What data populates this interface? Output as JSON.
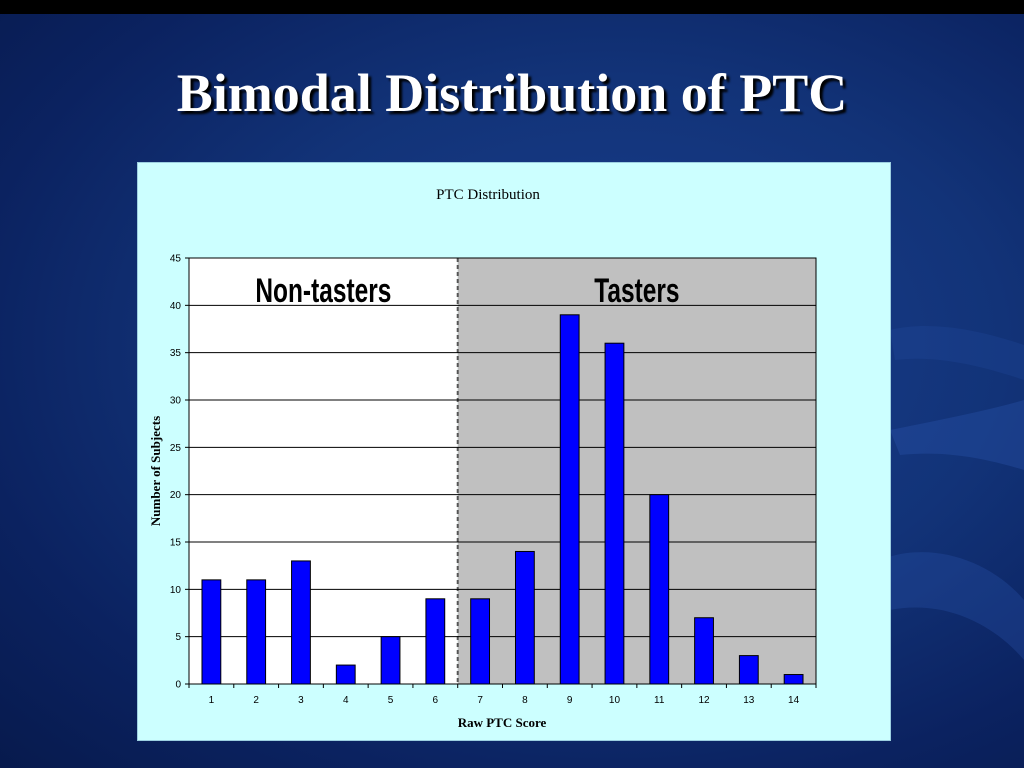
{
  "slide": {
    "title": "Bimodal Distribution of PTC"
  },
  "chart_data": {
    "type": "bar",
    "title": "PTC Distribution",
    "xlabel": "Raw PTC Score",
    "ylabel": "Number of Subjects",
    "categories": [
      "1",
      "2",
      "3",
      "4",
      "5",
      "6",
      "7",
      "8",
      "9",
      "10",
      "11",
      "12",
      "13",
      "14"
    ],
    "values": [
      11,
      11,
      13,
      2,
      5,
      9,
      9,
      14,
      39,
      36,
      20,
      7,
      3,
      1
    ],
    "ylim": [
      0,
      45
    ],
    "yticks": [
      0,
      5,
      10,
      15,
      20,
      25,
      30,
      35,
      40,
      45
    ],
    "grid": true,
    "bar_color": "#0000ff",
    "regions": [
      {
        "label": "Non-tasters",
        "from_category": "1",
        "to_category": "6",
        "color": "#ffffff"
      },
      {
        "label": "Tasters",
        "from_category": "7",
        "to_category": "14",
        "color": "#c0c0c0"
      }
    ]
  }
}
